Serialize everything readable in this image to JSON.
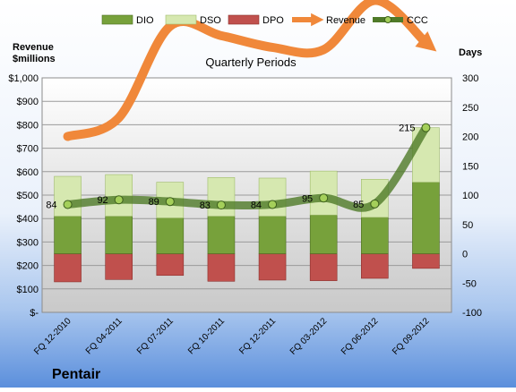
{
  "chart_data": {
    "type": "bar",
    "title": "Quarterly Periods",
    "company": "Pentair",
    "left_axis_label_line1": "Revenue",
    "left_axis_label_line2": "$millions",
    "right_axis_label": "Days",
    "left_ylim": [
      0,
      1000
    ],
    "left_ticks": [
      "$-",
      "$100",
      "$200",
      "$300",
      "$400",
      "$500",
      "$600",
      "$700",
      "$800",
      "$900",
      "$1,000"
    ],
    "right_ylim": [
      -100,
      300
    ],
    "right_ticks": [
      "-100",
      "-50",
      "0",
      "50",
      "100",
      "150",
      "200",
      "250",
      "300"
    ],
    "categories": [
      "FQ 12-2010",
      "FQ 04-2011",
      "FQ 07-2011",
      "FQ 10-2011",
      "FQ 12-2011",
      "FQ 03-2012",
      "FQ 06-2012",
      "FQ 09-2012"
    ],
    "legend_position": "top",
    "grid": true,
    "series": [
      {
        "name": "DIO",
        "color": "#77a13b",
        "values": [
          64,
          64,
          61,
          64,
          64,
          66,
          62,
          122
        ]
      },
      {
        "name": "DSO",
        "color": "#d6e8b0",
        "values": [
          68,
          71,
          61,
          66,
          65,
          75,
          65,
          93
        ]
      },
      {
        "name": "DPO",
        "color": "#c0504d",
        "values": [
          -48,
          -44,
          -37,
          -47,
          -45,
          -46,
          -42,
          -25
        ]
      },
      {
        "name": "Revenue",
        "color": "#f0883a",
        "values": [
          750,
          830,
          1220,
          1180,
          1130,
          1120,
          1330,
          1150
        ]
      },
      {
        "name": "CCC",
        "color": "#4f7a28",
        "values": [
          84,
          92,
          89,
          83,
          84,
          95,
          85,
          215
        ]
      }
    ],
    "ccc_labels": [
      "84",
      "92",
      "89",
      "83",
      "84",
      "95",
      "85",
      "215"
    ]
  }
}
